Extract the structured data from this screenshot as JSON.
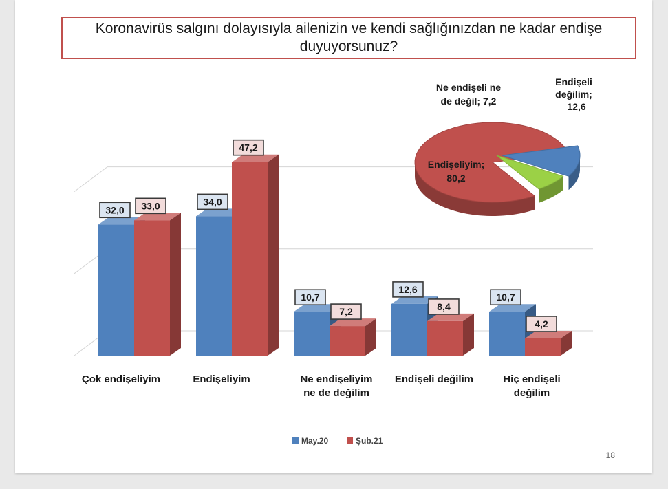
{
  "slide": {
    "title": "Koronavirüs salgını dolayısıyla ailenizin ve kendi sağlığınızdan ne kadar endişe duyuyorsunuz?",
    "page_number": "18"
  },
  "chart_data": [
    {
      "type": "bar",
      "categories": [
        "Çok endişeliyim",
        "Endişeliyim",
        "Ne endişeliyim ne de değilim",
        "Endişeli değilim",
        "Hiç endişeli değilim"
      ],
      "series": [
        {
          "name": "May.20",
          "values": [
            32.0,
            34.0,
            10.7,
            12.6,
            10.7
          ],
          "labels": [
            "32,0",
            "34,0",
            "10,7",
            "12,6",
            "10,7"
          ],
          "color": "#4f81bd"
        },
        {
          "name": "Şub.21",
          "values": [
            33.0,
            47.2,
            7.2,
            8.4,
            4.2
          ],
          "labels": [
            "33,0",
            "47,2",
            "7,2",
            "8,4",
            "4,2"
          ],
          "color": "#c0504d"
        }
      ],
      "ylim": [
        0,
        50
      ],
      "grid": true,
      "legend": "bottom"
    },
    {
      "type": "pie",
      "slices": [
        {
          "label": "Endişeliyim",
          "value": 80.2,
          "value_label": "80,2",
          "color": "#c0504d"
        },
        {
          "label": "Ne endişeli ne de değil",
          "value": 7.2,
          "value_label": "7,2",
          "color": "#9bd146"
        },
        {
          "label": "Endişeli değilim",
          "value": 12.6,
          "value_label": "12,6",
          "color": "#4f81bd"
        }
      ]
    }
  ]
}
